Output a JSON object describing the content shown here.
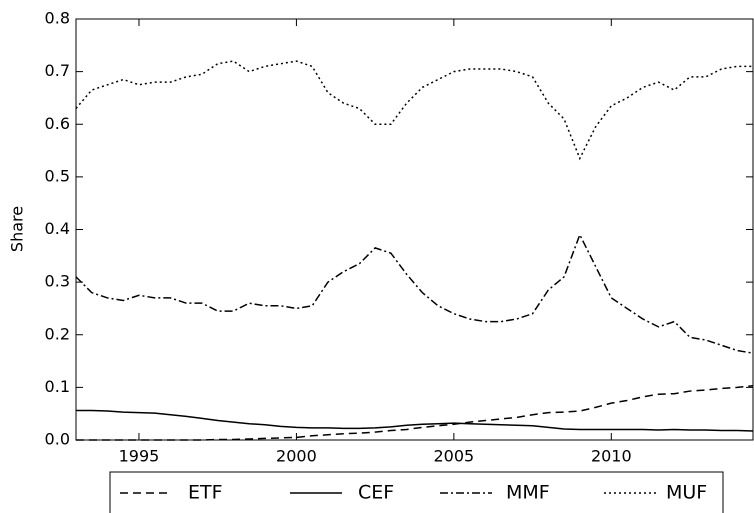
{
  "chart_data": {
    "type": "line",
    "ylabel": "Share",
    "x": [
      1993,
      1993.5,
      1994,
      1994.5,
      1995,
      1995.5,
      1996,
      1996.5,
      1997,
      1997.5,
      1998,
      1998.5,
      1999,
      1999.5,
      2000,
      2000.5,
      2001,
      2001.5,
      2002,
      2002.5,
      2003,
      2003.5,
      2004,
      2004.5,
      2005,
      2005.5,
      2006,
      2006.5,
      2007,
      2007.5,
      2008,
      2008.5,
      2009,
      2009.5,
      2010,
      2010.5,
      2011,
      2011.5,
      2012,
      2012.5,
      2013,
      2013.5,
      2014,
      2014.5
    ],
    "series": [
      {
        "name": "ETF",
        "color": "#000000",
        "linestyle": "dashed",
        "values": [
          0,
          0,
          0,
          0,
          0,
          0,
          0,
          0,
          0,
          0.001,
          0.001,
          0.002,
          0.003,
          0.004,
          0.005,
          0.008,
          0.01,
          0.012,
          0.013,
          0.015,
          0.018,
          0.02,
          0.024,
          0.027,
          0.03,
          0.034,
          0.037,
          0.04,
          0.043,
          0.048,
          0.052,
          0.053,
          0.055,
          0.062,
          0.07,
          0.075,
          0.082,
          0.087,
          0.088,
          0.093,
          0.095,
          0.098,
          0.1,
          0.103
        ]
      },
      {
        "name": "CEF",
        "color": "#000000",
        "linestyle": "solid",
        "values": [
          0.056,
          0.056,
          0.055,
          0.053,
          0.052,
          0.051,
          0.048,
          0.045,
          0.041,
          0.037,
          0.034,
          0.031,
          0.029,
          0.026,
          0.024,
          0.023,
          0.023,
          0.022,
          0.022,
          0.023,
          0.025,
          0.028,
          0.03,
          0.031,
          0.032,
          0.031,
          0.03,
          0.029,
          0.028,
          0.027,
          0.024,
          0.021,
          0.02,
          0.02,
          0.02,
          0.02,
          0.02,
          0.019,
          0.02,
          0.019,
          0.019,
          0.018,
          0.018,
          0.017
        ]
      },
      {
        "name": "MMF",
        "color": "#000000",
        "linestyle": "dashdot",
        "values": [
          0.31,
          0.28,
          0.27,
          0.265,
          0.275,
          0.27,
          0.27,
          0.26,
          0.26,
          0.245,
          0.245,
          0.26,
          0.255,
          0.255,
          0.25,
          0.255,
          0.3,
          0.32,
          0.335,
          0.365,
          0.355,
          0.315,
          0.28,
          0.255,
          0.24,
          0.23,
          0.225,
          0.225,
          0.23,
          0.24,
          0.285,
          0.31,
          0.39,
          0.33,
          0.27,
          0.25,
          0.23,
          0.215,
          0.225,
          0.195,
          0.19,
          0.18,
          0.17,
          0.165
        ]
      },
      {
        "name": "MUF",
        "color": "#000000",
        "linestyle": "dotted",
        "values": [
          0.63,
          0.665,
          0.675,
          0.685,
          0.675,
          0.68,
          0.68,
          0.69,
          0.695,
          0.715,
          0.72,
          0.7,
          0.71,
          0.715,
          0.72,
          0.71,
          0.66,
          0.64,
          0.63,
          0.6,
          0.6,
          0.64,
          0.67,
          0.685,
          0.7,
          0.705,
          0.705,
          0.705,
          0.7,
          0.69,
          0.64,
          0.61,
          0.535,
          0.595,
          0.635,
          0.65,
          0.67,
          0.68,
          0.665,
          0.69,
          0.69,
          0.705,
          0.71,
          0.71
        ]
      }
    ],
    "xlim": [
      1993,
      2014.5
    ],
    "xticks": [
      1995,
      2000,
      2005,
      2010
    ],
    "ylim": [
      0,
      0.8
    ],
    "yticks": [
      {
        "value": 0,
        "label": "0.0"
      },
      0.1,
      0.2,
      0.3,
      0.4,
      0.5,
      0.6,
      0.7,
      0.8
    ],
    "legend": "bottom"
  }
}
